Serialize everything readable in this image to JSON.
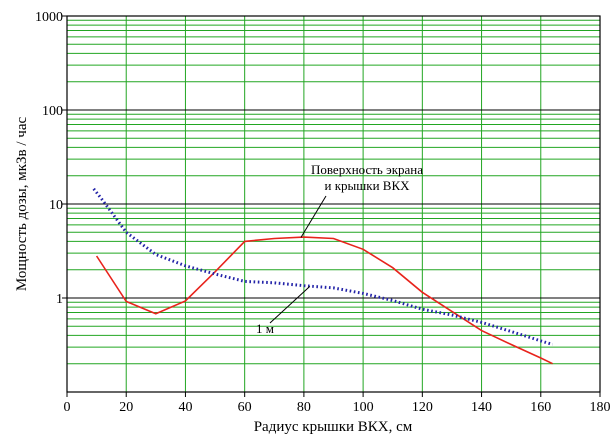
{
  "chart_data": {
    "type": "line",
    "xlabel": "Радиус крышки ВКХ, см",
    "ylabel": "Мощность дозы, мкЗв / час",
    "xlim": [
      0,
      180
    ],
    "ylim": [
      0.1,
      1000
    ],
    "yscale": "log",
    "grid": true,
    "x_ticks": [
      0,
      20,
      40,
      60,
      80,
      100,
      120,
      140,
      160,
      180
    ],
    "x_tick_labels": [
      "0",
      "20",
      "40",
      "60",
      "80",
      "100",
      "120",
      "140",
      "160",
      "180"
    ],
    "y_ticks": [
      1,
      10,
      100,
      1000
    ],
    "y_tick_labels": [
      "1",
      "10",
      "100",
      "1000"
    ],
    "series": [
      {
        "name": "Поверхность экрана и крышки ВКХ",
        "style": "solid",
        "color": "#e8231c",
        "x": [
          10,
          20,
          30,
          40,
          50,
          60,
          70,
          80,
          90,
          100,
          110,
          120,
          130,
          140,
          150,
          160,
          164
        ],
        "y": [
          2.8,
          0.92,
          0.68,
          0.93,
          1.9,
          4.0,
          4.3,
          4.45,
          4.3,
          3.3,
          2.1,
          1.15,
          0.72,
          0.45,
          0.32,
          0.23,
          0.2
        ]
      },
      {
        "name": "1 м",
        "style": "dotted",
        "color": "#2323a8",
        "x": [
          9,
          12,
          20,
          30,
          40,
          50,
          60,
          70,
          80,
          90,
          100,
          110,
          120,
          130,
          140,
          150,
          160,
          164
        ],
        "y": [
          14.5,
          11,
          5.0,
          2.9,
          2.2,
          1.8,
          1.5,
          1.45,
          1.35,
          1.28,
          1.12,
          0.94,
          0.76,
          0.66,
          0.55,
          0.44,
          0.35,
          0.32
        ]
      }
    ],
    "annotations": [
      {
        "text_lines": [
          "Поверхность экрана",
          "и крышки ВКХ"
        ],
        "target": {
          "x": 79,
          "y": 4.4
        }
      },
      {
        "text_lines": [
          "1 м"
        ],
        "target": {
          "x": 82,
          "y": 1.33
        }
      }
    ]
  },
  "colors": {
    "major_grid": "#000000",
    "minor_grid": "#22a622",
    "axis": "#000000"
  }
}
